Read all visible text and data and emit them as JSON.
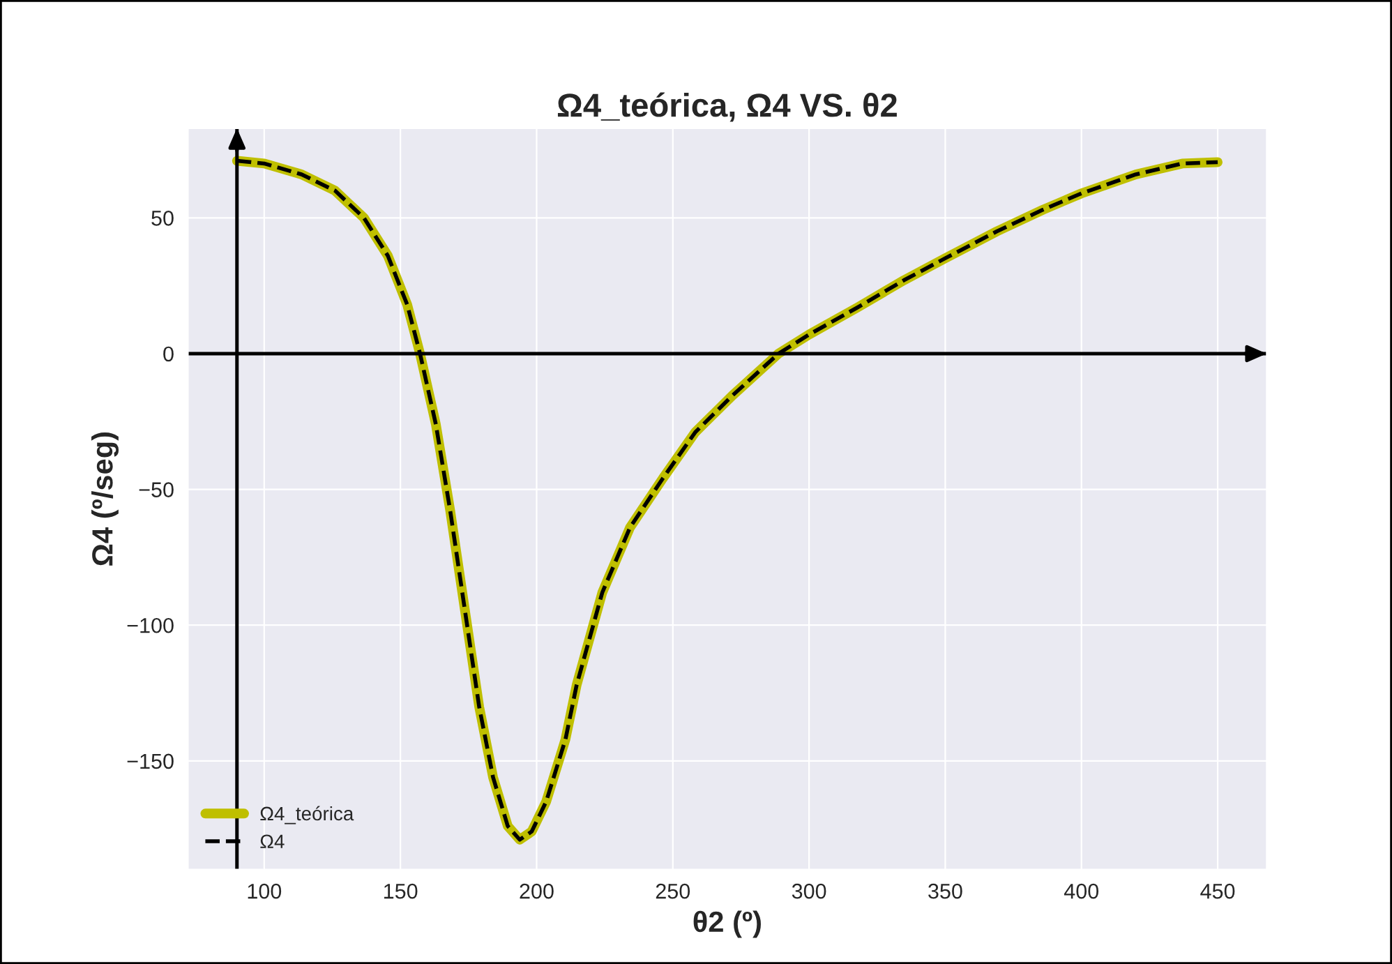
{
  "chart_data": {
    "type": "line",
    "title": "Ω4_teórica, Ω4 VS. θ2",
    "xlabel": "θ2 (º)",
    "ylabel": "Ω4 (º/seg)",
    "x": [
      90,
      100,
      113.7,
      126,
      136.6,
      145.4,
      152.5,
      157.2,
      163,
      168.3,
      173.6,
      178.9,
      184,
      189.4,
      193.8,
      198.2,
      203.5,
      210.6,
      214.7,
      224.1,
      234.3,
      246.3,
      258.2,
      271.8,
      288.8,
      300,
      317.8,
      334.8,
      349.8,
      368.9,
      385.9,
      400,
      420,
      437,
      450
    ],
    "series": [
      {
        "name": "Ω4_teórica",
        "color": "#bfbf00",
        "line_style": "solid",
        "values": [
          71,
          70,
          66,
          60,
          50,
          36,
          18,
          0,
          -26,
          -58,
          -94,
          -130,
          -156,
          -174,
          -179,
          -176,
          -165,
          -142,
          -122,
          -88,
          -64,
          -46,
          -29,
          -15.5,
          0,
          7,
          17,
          27,
          35,
          45,
          53,
          59,
          66,
          70,
          70.5
        ]
      },
      {
        "name": "Ω4",
        "color": "#000000",
        "line_style": "dashed",
        "values": [
          71,
          70,
          66,
          60,
          50,
          36,
          18,
          0,
          -26,
          -58,
          -94,
          -130,
          -156,
          -174,
          -179,
          -176,
          -165,
          -142,
          -122,
          -88,
          -64,
          -46,
          -29,
          -15.5,
          0,
          7,
          17,
          27,
          35,
          45,
          53,
          59,
          66,
          70,
          70.5
        ]
      }
    ],
    "xlim": [
      72,
      468
    ],
    "ylim": [
      -190,
      83
    ],
    "xticks": [
      100,
      150,
      200,
      250,
      300,
      350,
      400,
      450
    ],
    "yticks": [
      {
        "value": -150,
        "label": "−150"
      },
      {
        "value": -100,
        "label": "−100"
      },
      {
        "value": -50,
        "label": "−50"
      },
      0,
      50
    ],
    "ref_lines": [
      {
        "axis": "y",
        "value": 0,
        "color": "#000000"
      },
      {
        "axis": "x",
        "value": 90,
        "color": "#000000"
      }
    ],
    "grid": true,
    "legend": "bottom left",
    "marker": "none"
  }
}
